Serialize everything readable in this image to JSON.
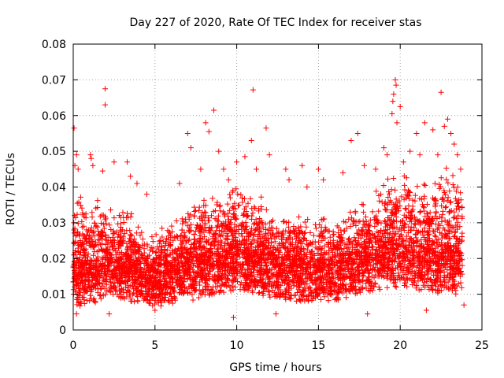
{
  "chart_data": {
    "type": "scatter",
    "title": "Day 227 of 2020, Rate Of TEC Index for receiver stas",
    "xlabel": "GPS time / hours",
    "ylabel": "ROTI / TECUs",
    "xlim": [
      0,
      25
    ],
    "ylim": [
      0,
      0.08
    ],
    "xticks": [
      "0",
      "5",
      "10",
      "15",
      "20",
      "25"
    ],
    "yticks": [
      "0",
      "0.01",
      "0.02",
      "0.03",
      "0.04",
      "0.05",
      "0.06",
      "0.07",
      "0.08"
    ],
    "grid": true,
    "marker": "plus",
    "color": "#ff0000",
    "series": [
      {
        "name": "ROTI",
        "density_profile": [
          {
            "x": 0.0,
            "base": 0.012,
            "spread": 0.022
          },
          {
            "x": 1.0,
            "base": 0.013,
            "spread": 0.018
          },
          {
            "x": 2.0,
            "base": 0.014,
            "spread": 0.016
          },
          {
            "x": 3.0,
            "base": 0.014,
            "spread": 0.016
          },
          {
            "x": 4.0,
            "base": 0.013,
            "spread": 0.012
          },
          {
            "x": 5.0,
            "base": 0.012,
            "spread": 0.01
          },
          {
            "x": 6.0,
            "base": 0.013,
            "spread": 0.012
          },
          {
            "x": 7.0,
            "base": 0.014,
            "spread": 0.014
          },
          {
            "x": 8.0,
            "base": 0.015,
            "spread": 0.016
          },
          {
            "x": 9.0,
            "base": 0.016,
            "spread": 0.018
          },
          {
            "x": 10.0,
            "base": 0.017,
            "spread": 0.02
          },
          {
            "x": 11.0,
            "base": 0.016,
            "spread": 0.018
          },
          {
            "x": 12.0,
            "base": 0.015,
            "spread": 0.014
          },
          {
            "x": 13.0,
            "base": 0.014,
            "spread": 0.014
          },
          {
            "x": 14.0,
            "base": 0.014,
            "spread": 0.014
          },
          {
            "x": 15.0,
            "base": 0.014,
            "spread": 0.012
          },
          {
            "x": 16.0,
            "base": 0.014,
            "spread": 0.012
          },
          {
            "x": 17.0,
            "base": 0.015,
            "spread": 0.014
          },
          {
            "x": 18.0,
            "base": 0.016,
            "spread": 0.016
          },
          {
            "x": 19.0,
            "base": 0.017,
            "spread": 0.02
          },
          {
            "x": 20.0,
            "base": 0.018,
            "spread": 0.02
          },
          {
            "x": 21.0,
            "base": 0.017,
            "spread": 0.02
          },
          {
            "x": 22.0,
            "base": 0.016,
            "spread": 0.022
          },
          {
            "x": 23.0,
            "base": 0.016,
            "spread": 0.024
          },
          {
            "x": 23.8,
            "base": 0.015,
            "spread": 0.02
          }
        ],
        "points": [
          [
            0.05,
            0.0565
          ],
          [
            0.1,
            0.046
          ],
          [
            0.2,
            0.049
          ],
          [
            0.3,
            0.045
          ],
          [
            1.05,
            0.049
          ],
          [
            1.1,
            0.048
          ],
          [
            1.2,
            0.046
          ],
          [
            1.95,
            0.0675
          ],
          [
            1.95,
            0.063
          ],
          [
            1.8,
            0.0445
          ],
          [
            2.5,
            0.047
          ],
          [
            3.3,
            0.047
          ],
          [
            3.5,
            0.043
          ],
          [
            3.9,
            0.041
          ],
          [
            4.5,
            0.038
          ],
          [
            5.0,
            0.0055
          ],
          [
            6.5,
            0.041
          ],
          [
            7.0,
            0.055
          ],
          [
            7.2,
            0.051
          ],
          [
            7.8,
            0.045
          ],
          [
            8.1,
            0.058
          ],
          [
            8.3,
            0.0555
          ],
          [
            8.6,
            0.0615
          ],
          [
            8.9,
            0.05
          ],
          [
            9.2,
            0.045
          ],
          [
            9.5,
            0.042
          ],
          [
            10.0,
            0.047
          ],
          [
            10.5,
            0.0485
          ],
          [
            10.9,
            0.053
          ],
          [
            11.0,
            0.0672
          ],
          [
            11.2,
            0.045
          ],
          [
            11.8,
            0.0565
          ],
          [
            12.0,
            0.049
          ],
          [
            13.0,
            0.045
          ],
          [
            13.2,
            0.042
          ],
          [
            14.0,
            0.046
          ],
          [
            14.3,
            0.04
          ],
          [
            15.0,
            0.045
          ],
          [
            15.3,
            0.042
          ],
          [
            16.5,
            0.044
          ],
          [
            17.0,
            0.053
          ],
          [
            17.4,
            0.055
          ],
          [
            17.8,
            0.046
          ],
          [
            18.5,
            0.045
          ],
          [
            19.0,
            0.051
          ],
          [
            19.2,
            0.049
          ],
          [
            19.5,
            0.0605
          ],
          [
            19.55,
            0.064
          ],
          [
            19.6,
            0.066
          ],
          [
            19.7,
            0.07
          ],
          [
            19.75,
            0.0685
          ],
          [
            19.8,
            0.058
          ],
          [
            20.0,
            0.0625
          ],
          [
            20.2,
            0.047
          ],
          [
            20.6,
            0.05
          ],
          [
            21.0,
            0.055
          ],
          [
            21.2,
            0.049
          ],
          [
            21.5,
            0.058
          ],
          [
            22.0,
            0.056
          ],
          [
            22.3,
            0.049
          ],
          [
            22.5,
            0.0665
          ],
          [
            22.7,
            0.057
          ],
          [
            22.9,
            0.059
          ],
          [
            23.1,
            0.055
          ],
          [
            23.3,
            0.052
          ],
          [
            23.5,
            0.049
          ],
          [
            23.7,
            0.045
          ],
          [
            23.9,
            0.007
          ],
          [
            0.2,
            0.0045
          ],
          [
            2.2,
            0.0045
          ],
          [
            9.8,
            0.0035
          ],
          [
            12.4,
            0.0045
          ],
          [
            18.0,
            0.0045
          ],
          [
            21.6,
            0.0055
          ]
        ]
      }
    ]
  }
}
